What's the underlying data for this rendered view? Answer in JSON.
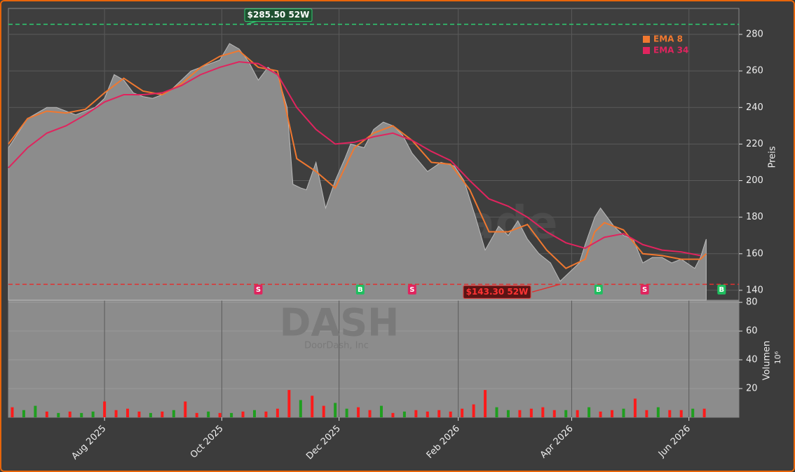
{
  "chart_data": {
    "type": "area",
    "watermark": "forexsignale.trade",
    "symbol": "DASH",
    "company": "DoorDash, Inc",
    "xlim": [
      0,
      380
    ],
    "xticks": [
      {
        "value": 50,
        "label": "Aug 2025"
      },
      {
        "value": 111,
        "label": "Oct 2025"
      },
      {
        "value": 172,
        "label": "Dec 2025"
      },
      {
        "value": 234,
        "label": "Feb 2026"
      },
      {
        "value": 293,
        "label": "Apr 2026"
      },
      {
        "value": 354,
        "label": "Jun 2026"
      }
    ],
    "ylabel": "Preis",
    "ylim": [
      134.6,
      294.2
    ],
    "yticks": [
      140,
      160,
      180,
      200,
      220,
      240,
      260,
      280
    ],
    "grid": true,
    "price": {
      "color": "#8c8c8c",
      "x": [
        0,
        5,
        10,
        15,
        20,
        25,
        30,
        35,
        40,
        45,
        50,
        55,
        60,
        65,
        70,
        75,
        80,
        85,
        90,
        95,
        100,
        105,
        110,
        115,
        120,
        125,
        130,
        135,
        140,
        145,
        148,
        152,
        155,
        160,
        165,
        170,
        175,
        178,
        185,
        190,
        195,
        200,
        205,
        210,
        218,
        225,
        232,
        237,
        243,
        248,
        255,
        260,
        265,
        270,
        276,
        282,
        287,
        292,
        297,
        300,
        305,
        308,
        315,
        320,
        325,
        330,
        335,
        340,
        345,
        350,
        357,
        360,
        363
      ],
      "values": [
        218,
        226,
        234,
        237,
        240,
        240,
        238,
        236,
        238,
        240,
        245,
        258,
        255,
        248,
        246,
        245,
        247,
        250,
        255,
        260,
        262,
        264,
        266,
        275,
        272,
        265,
        255,
        262,
        258,
        240,
        198,
        196,
        195,
        210,
        185,
        200,
        212,
        220,
        218,
        228,
        232,
        230,
        225,
        215,
        205,
        210,
        208,
        200,
        180,
        162,
        175,
        170,
        178,
        168,
        160,
        155,
        145,
        150,
        155,
        165,
        180,
        185,
        175,
        170,
        168,
        155,
        158,
        158,
        155,
        157,
        152,
        158,
        168
      ]
    },
    "series": [
      {
        "name": "EMA 8",
        "color": "#f07830",
        "x": [
          0,
          10,
          20,
          30,
          40,
          50,
          60,
          70,
          80,
          90,
          100,
          110,
          120,
          130,
          140,
          150,
          160,
          170,
          180,
          190,
          200,
          210,
          220,
          230,
          240,
          250,
          260,
          270,
          280,
          290,
          300,
          305,
          310,
          320,
          330,
          340,
          350,
          360,
          363
        ],
        "values": [
          220,
          234,
          238,
          237,
          239,
          248,
          256,
          249,
          247,
          253,
          262,
          268,
          271,
          262,
          260,
          212,
          205,
          196,
          218,
          226,
          230,
          222,
          210,
          209,
          195,
          172,
          172,
          176,
          162,
          152,
          157,
          172,
          177,
          173,
          160,
          159,
          157,
          157,
          160
        ]
      },
      {
        "name": "EMA 34",
        "color": "#e0245e",
        "x": [
          0,
          10,
          20,
          30,
          40,
          50,
          60,
          70,
          80,
          90,
          100,
          110,
          120,
          130,
          140,
          150,
          160,
          170,
          180,
          190,
          200,
          210,
          220,
          230,
          240,
          250,
          260,
          270,
          280,
          290,
          300,
          310,
          320,
          330,
          340,
          350,
          360
        ],
        "values": [
          207,
          218,
          226,
          230,
          236,
          243,
          247,
          247,
          248,
          252,
          258,
          262,
          265,
          264,
          258,
          240,
          228,
          220,
          221,
          224,
          226,
          222,
          216,
          211,
          200,
          190,
          186,
          180,
          172,
          166,
          163,
          169,
          171,
          165,
          162,
          161,
          159
        ]
      }
    ],
    "legend": "upper right",
    "high": {
      "value": 285.5,
      "label": "$285.50 52W",
      "x": 124,
      "color": "#2ecc71"
    },
    "low": {
      "value": 143.3,
      "label": "$143.30 52W",
      "x": 287,
      "color": "#e03030"
    },
    "signals": [
      {
        "x": 130,
        "label": "S"
      },
      {
        "x": 183,
        "label": "B"
      },
      {
        "x": 210,
        "label": "S"
      },
      {
        "x": 307,
        "label": "B"
      },
      {
        "x": 331,
        "label": "S"
      },
      {
        "x": 371,
        "label": "B"
      }
    ],
    "volume": {
      "ylabel": "Volumen",
      "unit": "10⁶",
      "ylim": [
        0,
        81.5
      ],
      "yticks": [
        20,
        40,
        60,
        80
      ],
      "x": [
        2,
        8,
        14,
        20,
        26,
        32,
        38,
        44,
        50,
        56,
        62,
        68,
        74,
        80,
        86,
        92,
        98,
        104,
        110,
        116,
        122,
        128,
        134,
        140,
        146,
        152,
        158,
        164,
        170,
        176,
        182,
        188,
        194,
        200,
        206,
        212,
        218,
        224,
        230,
        236,
        242,
        248,
        254,
        260,
        266,
        272,
        278,
        284,
        290,
        296,
        302,
        308,
        314,
        320,
        326,
        332,
        338,
        344,
        350,
        356,
        362
      ],
      "values": [
        7,
        5,
        8,
        4,
        3,
        4,
        3,
        4,
        11,
        5,
        6,
        4,
        3,
        4,
        5,
        11,
        3,
        4,
        3,
        3,
        4,
        5,
        4,
        6,
        19,
        12,
        15,
        8,
        10,
        6,
        7,
        5,
        8,
        3,
        4,
        5,
        4,
        5,
        4,
        6,
        9,
        19,
        7,
        5,
        5,
        6,
        7,
        5,
        5,
        5,
        7,
        4,
        5,
        6,
        13,
        5,
        7,
        5,
        5,
        6,
        6
      ],
      "colors": [
        "#ff1a1a",
        "#1f9e1f",
        "#1f9e1f",
        "#ff1a1a",
        "#1f9e1f",
        "#ff1a1a",
        "#1f9e1f",
        "#1f9e1f",
        "#ff1a1a",
        "#ff1a1a",
        "#ff1a1a",
        "#ff1a1a",
        "#1f9e1f",
        "#ff1a1a",
        "#1f9e1f",
        "#ff1a1a",
        "#ff1a1a",
        "#1f9e1f",
        "#ff1a1a",
        "#1f9e1f",
        "#ff1a1a",
        "#1f9e1f",
        "#ff1a1a",
        "#ff1a1a",
        "#ff1a1a",
        "#1f9e1f",
        "#ff1a1a",
        "#ff1a1a",
        "#1f9e1f",
        "#1f9e1f",
        "#ff1a1a",
        "#ff1a1a",
        "#1f9e1f",
        "#ff1a1a",
        "#1f9e1f",
        "#ff1a1a",
        "#ff1a1a",
        "#ff1a1a",
        "#ff1a1a",
        "#ff1a1a",
        "#ff1a1a",
        "#ff1a1a",
        "#1f9e1f",
        "#1f9e1f",
        "#ff1a1a",
        "#ff1a1a",
        "#ff1a1a",
        "#ff1a1a",
        "#1f9e1f",
        "#ff1a1a",
        "#1f9e1f",
        "#ff1a1a",
        "#ff1a1a",
        "#1f9e1f",
        "#ff1a1a",
        "#ff1a1a",
        "#1f9e1f",
        "#ff1a1a",
        "#ff1a1a",
        "#1f9e1f",
        "#ff1a1a"
      ]
    }
  }
}
